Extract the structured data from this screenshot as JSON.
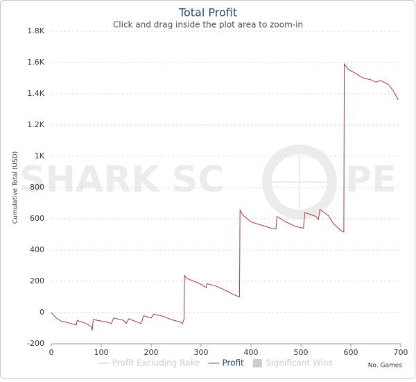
{
  "chart_data": {
    "type": "line",
    "title": "Total Profit",
    "subtitle": "Click and drag inside the plot area to zoom-in",
    "ylabel": "Cumulative Total (USD)",
    "xlabel": "No. Games",
    "watermark": [
      "SHARK SC",
      "PE"
    ],
    "x": [
      0,
      10,
      20,
      40,
      50,
      52,
      70,
      80,
      82,
      84,
      110,
      120,
      125,
      145,
      150,
      155,
      180,
      185,
      200,
      205,
      225,
      240,
      258,
      263,
      266,
      267,
      270,
      290,
      300,
      310,
      312,
      330,
      350,
      365,
      377,
      378,
      385,
      400,
      420,
      440,
      450,
      452,
      470,
      490,
      505,
      508,
      530,
      535,
      538,
      555,
      565,
      580,
      586,
      587,
      595,
      610,
      625,
      640,
      650,
      660,
      675,
      685,
      695
    ],
    "series": [
      {
        "name": "Profit",
        "color": "#a83a3a",
        "values": [
          0,
          -35,
          -55,
          -70,
          -80,
          -50,
          -70,
          -90,
          -115,
          -45,
          -60,
          -70,
          -35,
          -50,
          -70,
          -40,
          -70,
          -20,
          -35,
          -10,
          -25,
          -45,
          -60,
          -70,
          -40,
          240,
          220,
          195,
          180,
          160,
          185,
          170,
          140,
          115,
          100,
          655,
          620,
          580,
          560,
          540,
          535,
          615,
          580,
          550,
          540,
          640,
          615,
          595,
          660,
          620,
          570,
          525,
          515,
          1590,
          1555,
          1530,
          1500,
          1490,
          1475,
          1485,
          1460,
          1420,
          1360
        ]
      }
    ],
    "hidden_series": [
      {
        "name": "Profit Excluding Rake",
        "color": "#cccccc"
      },
      {
        "name": "Significant Wins",
        "color": "#cccccc"
      }
    ],
    "xlim": [
      0,
      700
    ],
    "ylim": [
      -200,
      1800
    ],
    "xticks": [
      0,
      100,
      200,
      300,
      400,
      500,
      600,
      700
    ],
    "yticks": [
      -200,
      0,
      200,
      400,
      600,
      800,
      {
        "value": 1000,
        "label": "1K"
      },
      {
        "value": 1200,
        "label": "1.2K"
      },
      {
        "value": 1400,
        "label": "1.4K"
      },
      {
        "value": 1600,
        "label": "1.6K"
      },
      {
        "value": 1800,
        "label": "1.8K"
      }
    ],
    "grid": true
  }
}
